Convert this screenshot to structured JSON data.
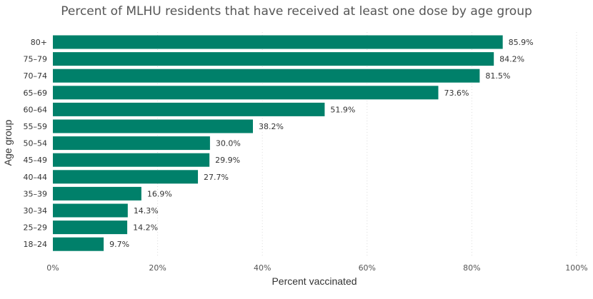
{
  "chart_data": {
    "type": "bar",
    "orientation": "horizontal",
    "title": "Percent of MLHU residents that have received at least one dose by age group",
    "xlabel": "Percent vaccinated",
    "ylabel": "Age group",
    "categories": [
      "80+",
      "75–79",
      "70–74",
      "65–69",
      "60–64",
      "55–59",
      "50–54",
      "45–49",
      "40–44",
      "35–39",
      "30–34",
      "25–29",
      "18–24"
    ],
    "values": [
      85.9,
      84.2,
      81.5,
      73.6,
      51.9,
      38.2,
      30.0,
      29.9,
      27.7,
      16.9,
      14.3,
      14.2,
      9.7
    ],
    "value_labels": [
      "85.9%",
      "84.2%",
      "81.5%",
      "73.6%",
      "51.9%",
      "38.2%",
      "30.0%",
      "29.9%",
      "27.7%",
      "16.9%",
      "14.3%",
      "14.2%",
      "9.7%"
    ],
    "xlim": [
      0,
      100
    ],
    "x_ticks": [
      0,
      20,
      40,
      60,
      80,
      100
    ],
    "x_tick_labels": [
      "0%",
      "20%",
      "40%",
      "60%",
      "80%",
      "100%"
    ],
    "grid": "vertical dotted",
    "bar_color": "#00806A"
  }
}
